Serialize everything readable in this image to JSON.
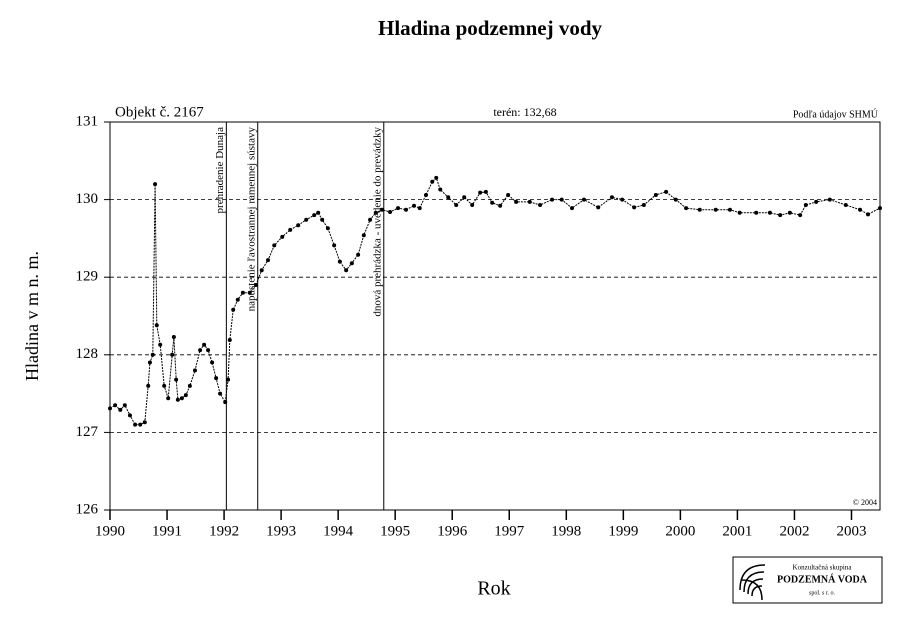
{
  "chart_data": {
    "type": "line",
    "title": "Hladina podzemnej vody",
    "object_label": "Objekt č. 2167",
    "terrain_label": "terén: 132,68",
    "source_label": "Podľa údajov SHMÚ",
    "copyright": "© 2004",
    "y_label": "Hladina v m n. m.",
    "x_label": "Rok",
    "logo": {
      "line1": "Konzultačná skupina",
      "line2": "PODZEMNÁ VODA",
      "line3": "spol. s r. o."
    },
    "xlim": [
      1990,
      2003.5
    ],
    "ylim": [
      126,
      131
    ],
    "xticks": [
      1990,
      1991,
      1992,
      1993,
      1994,
      1995,
      1996,
      1997,
      1998,
      1999,
      2000,
      2001,
      2002,
      2003
    ],
    "yticks": [
      126,
      127,
      128,
      129,
      130,
      131
    ],
    "grid": true,
    "color": "#000000",
    "events": [
      {
        "x": 1992.04,
        "label": "prehradenie Dunaja"
      },
      {
        "x": 1992.59,
        "label": "napustenie ľavostrannej ramennej sústavy"
      },
      {
        "x": 1994.8,
        "label": "dnová prehrádzka - uvedenie do prevádzky"
      }
    ],
    "x": [
      1990.0,
      1990.09,
      1990.18,
      1990.26,
      1990.35,
      1990.44,
      1990.53,
      1990.61,
      1990.67,
      1990.7,
      1990.75,
      1990.79,
      1990.82,
      1990.88,
      1990.95,
      1991.02,
      1991.09,
      1991.12,
      1991.16,
      1991.19,
      1991.26,
      1991.33,
      1991.4,
      1991.49,
      1991.58,
      1991.65,
      1991.72,
      1991.79,
      1991.86,
      1991.93,
      1992.02,
      1992.07,
      1992.1,
      1992.16,
      1992.24,
      1992.33,
      1992.45,
      1992.56,
      1992.66,
      1992.77,
      1992.88,
      1993.02,
      1993.16,
      1993.3,
      1993.44,
      1993.58,
      1993.65,
      1993.72,
      1993.82,
      1993.93,
      1994.03,
      1994.14,
      1994.24,
      1994.35,
      1994.45,
      1994.56,
      1994.66,
      1994.77,
      1994.91,
      1995.05,
      1995.19,
      1995.33,
      1995.43,
      1995.54,
      1995.65,
      1995.72,
      1995.79,
      1995.93,
      1996.07,
      1996.21,
      1996.35,
      1996.49,
      1996.59,
      1996.7,
      1996.84,
      1996.98,
      1997.12,
      1997.36,
      1997.54,
      1997.75,
      1997.92,
      1998.1,
      1998.31,
      1998.56,
      1998.8,
      1998.98,
      1999.19,
      1999.36,
      1999.57,
      1999.75,
      1999.92,
      2000.1,
      2000.34,
      2000.62,
      2000.87,
      2001.04,
      2001.33,
      2001.57,
      2001.75,
      2001.92,
      2002.1,
      2002.2,
      2002.38,
      2002.62,
      2002.9,
      2003.15,
      2003.29,
      2003.5
    ],
    "values": [
      127.31,
      127.35,
      127.29,
      127.35,
      127.22,
      127.1,
      127.1,
      127.13,
      127.6,
      127.9,
      128.0,
      130.2,
      128.38,
      128.13,
      127.6,
      127.44,
      128.0,
      128.23,
      127.68,
      127.42,
      127.44,
      127.48,
      127.6,
      127.8,
      128.06,
      128.13,
      128.06,
      127.9,
      127.7,
      127.5,
      127.39,
      127.68,
      128.19,
      128.58,
      128.71,
      128.8,
      128.8,
      128.9,
      129.09,
      129.22,
      129.41,
      129.52,
      129.61,
      129.67,
      129.74,
      129.8,
      129.83,
      129.74,
      129.63,
      129.41,
      129.2,
      129.09,
      129.18,
      129.29,
      129.54,
      129.74,
      129.83,
      129.87,
      129.84,
      129.89,
      129.87,
      129.92,
      129.89,
      130.06,
      130.23,
      130.28,
      130.13,
      130.03,
      129.93,
      130.03,
      129.93,
      130.09,
      130.1,
      129.96,
      129.92,
      130.06,
      129.97,
      129.97,
      129.93,
      130.0,
      130.0,
      129.89,
      130.0,
      129.9,
      130.03,
      130.0,
      129.9,
      129.93,
      130.06,
      130.1,
      130.0,
      129.89,
      129.87,
      129.87,
      129.87,
      129.83,
      129.83,
      129.83,
      129.8,
      129.83,
      129.8,
      129.93,
      129.97,
      130.0,
      129.93,
      129.87,
      129.81,
      129.89
    ]
  }
}
